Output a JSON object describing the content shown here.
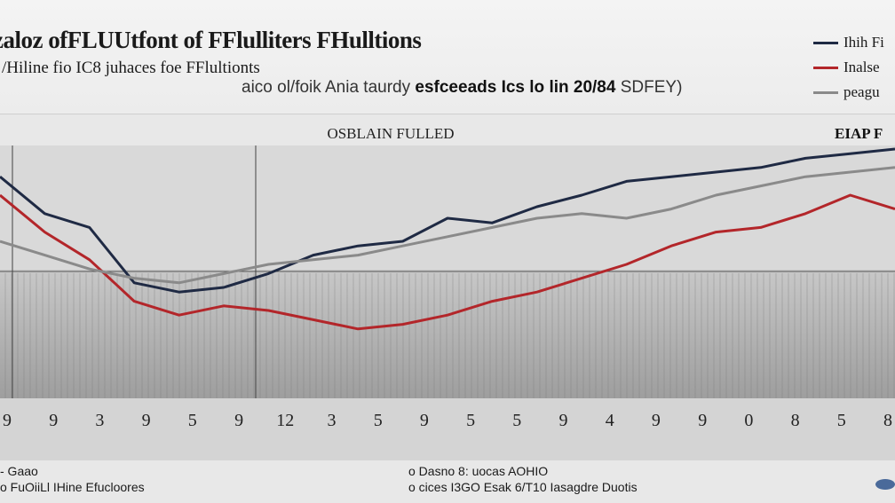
{
  "header": {
    "title": "zaloz ofFLUUtfont of FFlulliters FHulltions",
    "subtitle": "/Hiline fio IC8 juhaces foe FFlultionts",
    "subtitle2_pre": "aico ol/foik Ania taurdy",
    "subtitle2_bold": "esfceeads Ics lo lin 20/84",
    "subtitle2_post": "SDFEY)"
  },
  "footer": {
    "left_line1": "- Gaao",
    "left_line2": "o FuOiiLl IHine Efucloores",
    "mid_line1": "o Dasno 8: uocas AOHIO",
    "mid_line2": "o cices I3GO Esak 6/T10 Iasagdre Duotis"
  },
  "colors": {
    "navy": "#1f2a44",
    "red": "#b3262a",
    "gray": "#8a8a8a",
    "grid": "#777777",
    "band": "#b4b4b4"
  },
  "chart_data": {
    "type": "line",
    "title": "OSBLAIN FULLED",
    "corner_label": "EIAP F",
    "legend": [
      "Ihih Fi",
      "Inalse",
      "peagu"
    ],
    "x": [
      0,
      5,
      10,
      15,
      20,
      25,
      30,
      35,
      40,
      45,
      50,
      55,
      60,
      65,
      70,
      75,
      80,
      85,
      90,
      95,
      100
    ],
    "ylim": [
      0,
      100
    ],
    "grid": true,
    "series": [
      {
        "name": "Ihih Fi",
        "color": "#1f2a44",
        "values": [
          88,
          72,
          66,
          42,
          38,
          40,
          46,
          54,
          58,
          60,
          70,
          68,
          75,
          80,
          86,
          88,
          90,
          92,
          96,
          98,
          100
        ]
      },
      {
        "name": "Inalse",
        "color": "#b3262a",
        "values": [
          80,
          64,
          52,
          34,
          28,
          32,
          30,
          26,
          22,
          24,
          28,
          34,
          38,
          44,
          50,
          58,
          64,
          66,
          72,
          80,
          74
        ]
      },
      {
        "name": "peagu",
        "color": "#8a8a8a",
        "values": [
          60,
          54,
          48,
          44,
          42,
          46,
          50,
          52,
          54,
          58,
          62,
          66,
          70,
          72,
          70,
          74,
          80,
          84,
          88,
          90,
          92
        ]
      }
    ],
    "tick_labels": [
      "9",
      "9",
      "3",
      "9",
      "5",
      "9",
      "12",
      "3",
      "5",
      "9",
      "5",
      "5",
      "9",
      "4",
      "9",
      "9",
      "0",
      "8",
      "5",
      "8"
    ]
  }
}
